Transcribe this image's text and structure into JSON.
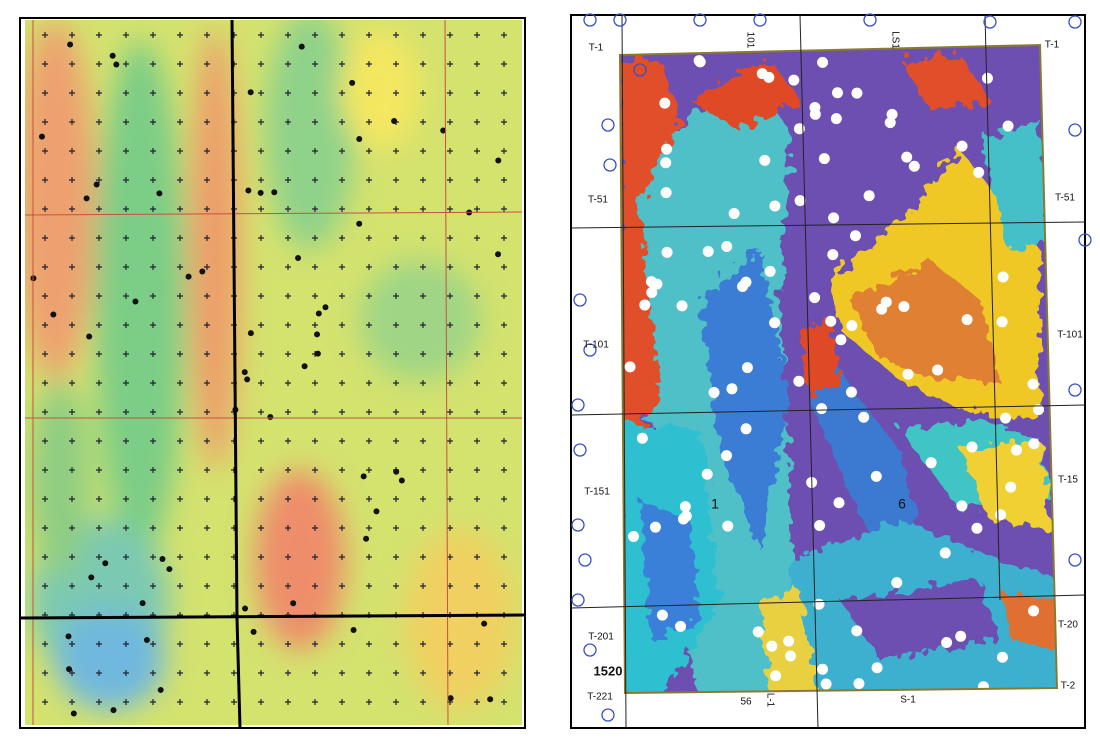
{
  "right_map": {
    "labels": [
      "T-1",
      "T-51",
      "T-101",
      "T-151",
      "T-201",
      "T-221",
      "T-1",
      "T-51",
      "T-101",
      "T-15",
      "T-20",
      "T-2",
      "1520",
      "56",
      "1",
      "6",
      "101",
      "LS1",
      "L-1",
      "S-1"
    ]
  }
}
